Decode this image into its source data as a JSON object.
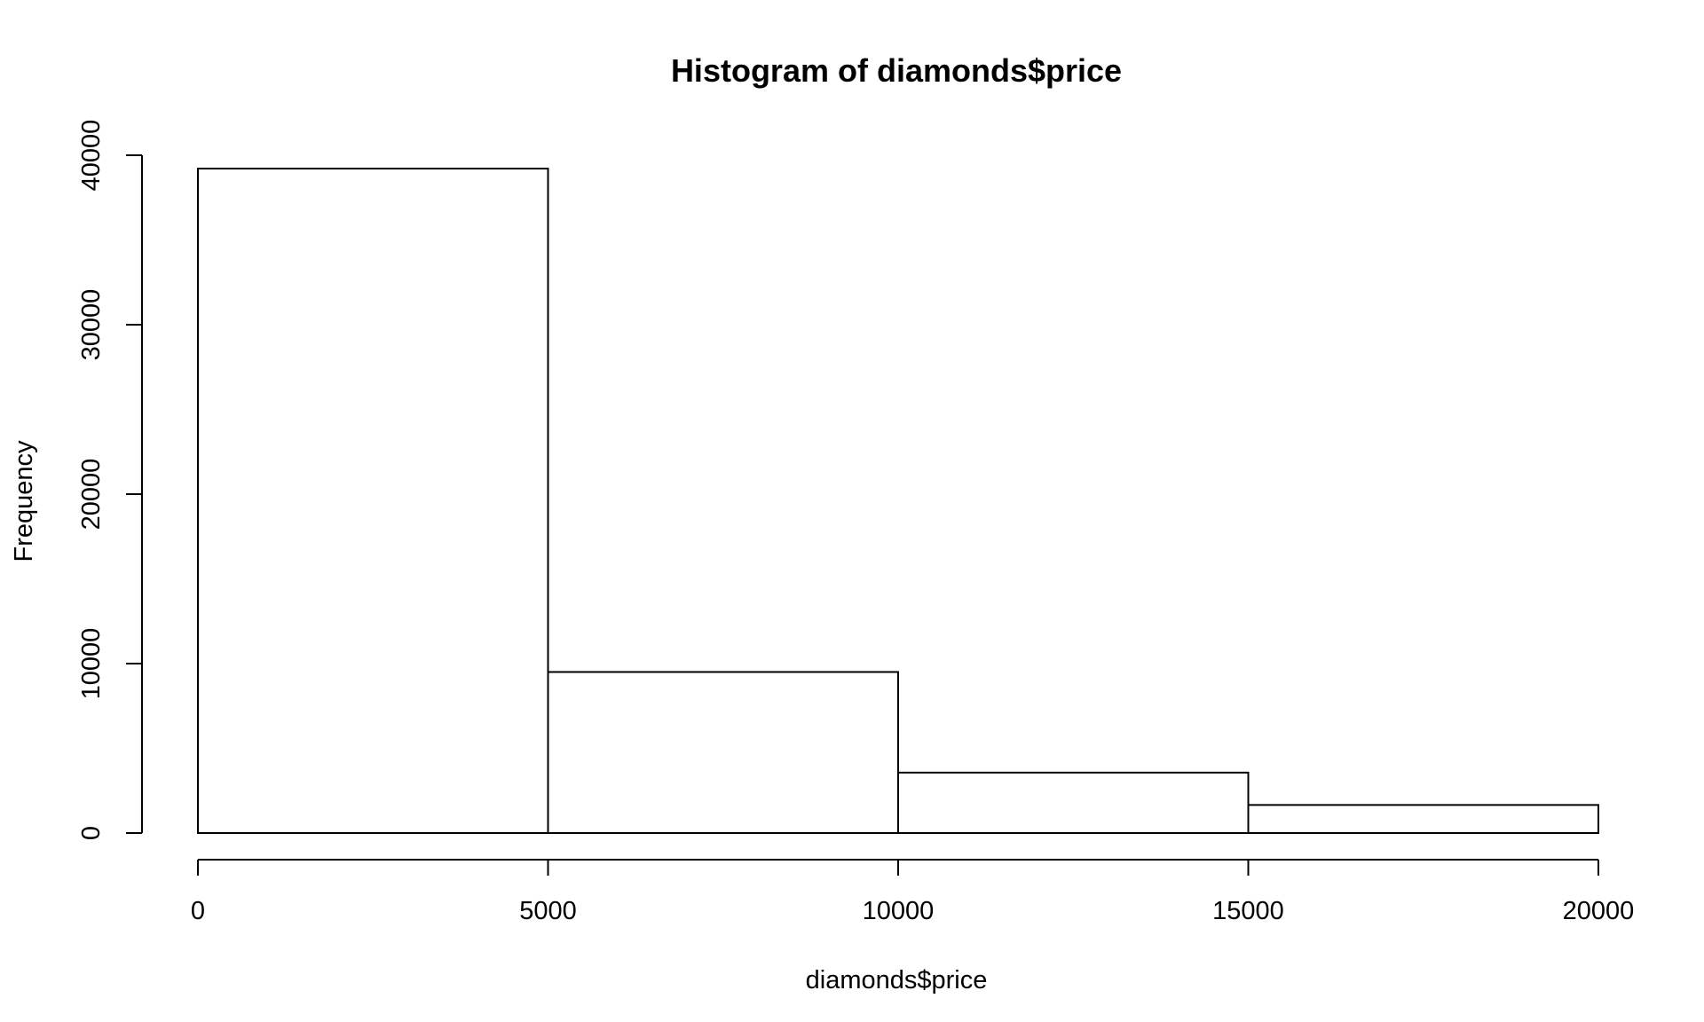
{
  "chart_data": {
    "type": "bar",
    "title": "Histogram of diamonds$price",
    "xlabel": "diamonds$price",
    "ylabel": "Frequency",
    "bins": [
      {
        "start": 0,
        "end": 5000,
        "count": 39213
      },
      {
        "start": 5000,
        "end": 10000,
        "count": 9504
      },
      {
        "start": 10000,
        "end": 15000,
        "count": 3567
      },
      {
        "start": 15000,
        "end": 20000,
        "count": 1656
      }
    ],
    "x_ticks": [
      0,
      5000,
      10000,
      15000,
      20000
    ],
    "y_ticks": [
      0,
      10000,
      20000,
      30000,
      40000
    ],
    "xlim": [
      0,
      20000
    ],
    "ylim": [
      0,
      40000
    ],
    "grid": false,
    "legend": "none",
    "colors": {
      "bar_fill": "#ffffff",
      "bar_stroke": "#000000",
      "background": "#ffffff"
    }
  }
}
